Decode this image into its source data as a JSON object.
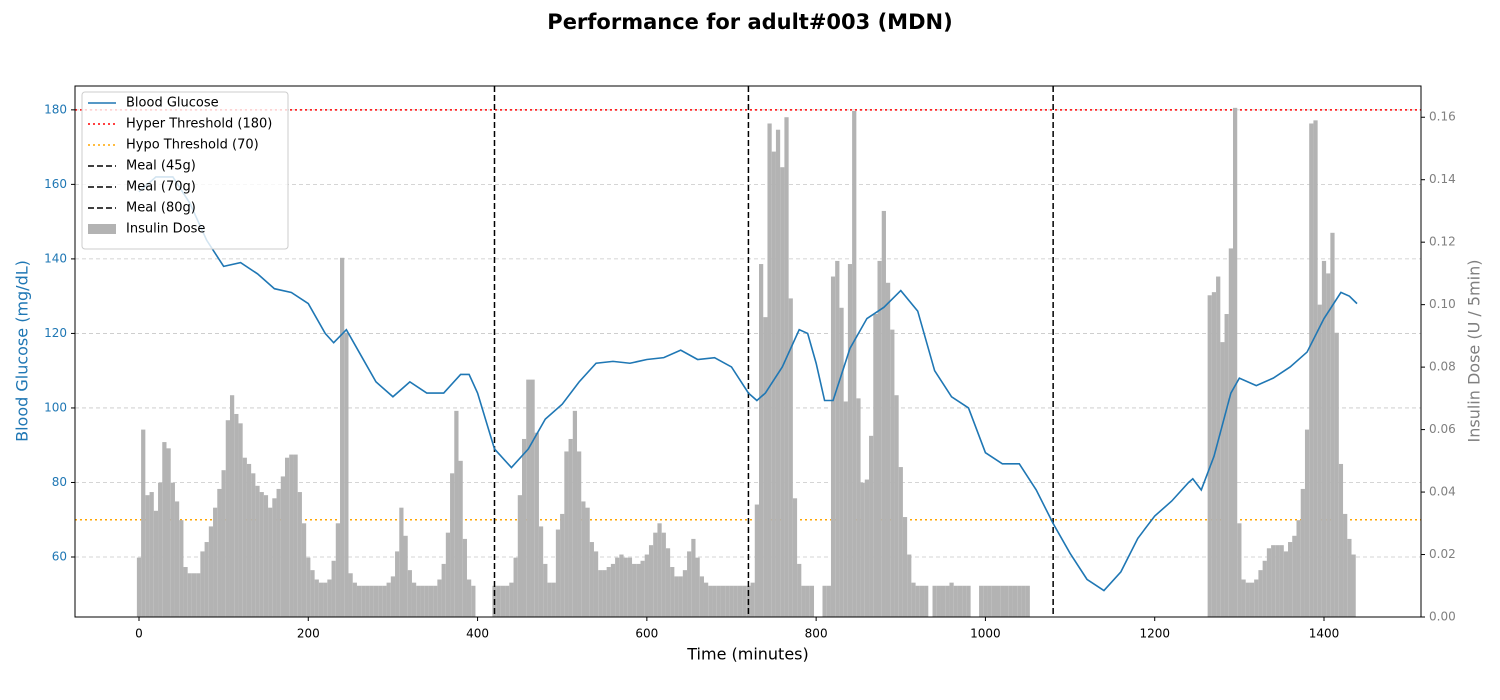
{
  "chart_data": {
    "type": "dual-axis-line-bar",
    "title": "Performance for adult#003 (MDN)",
    "xlabel": "Time (minutes)",
    "ylabel": "Blood Glucose (mg/dL)",
    "y2label": "Insulin Dose (U / 5min)",
    "xlim": [
      -75.6,
      1514.6
    ],
    "xticks": [
      0,
      200,
      400,
      600,
      800,
      1000,
      1200,
      1400
    ],
    "ylim": [
      43.9,
      186.4
    ],
    "yticks": [
      60,
      80,
      100,
      120,
      140,
      160,
      180
    ],
    "y2lim": [
      0,
      0.17
    ],
    "y2ticks": [
      {
        "value": 0,
        "label": "0.00"
      },
      {
        "value": 0.02,
        "label": "0.02"
      },
      {
        "value": 0.04,
        "label": "0.04"
      },
      {
        "value": 0.06,
        "label": "0.06"
      },
      {
        "value": 0.08,
        "label": "0.08"
      },
      {
        "value": 0.1,
        "label": "0.10"
      },
      {
        "value": 0.12,
        "label": "0.12"
      },
      {
        "value": 0.14,
        "label": "0.14"
      },
      {
        "value": 0.16,
        "label": "0.16"
      }
    ],
    "grid": true,
    "legend": "upper left",
    "series": [
      {
        "name": "Blood Glucose",
        "color": "#1f77b4",
        "kind": "line",
        "x": [
          0,
          20,
          40,
          60,
          80,
          100,
          120,
          140,
          160,
          180,
          200,
          220,
          230,
          245,
          260,
          280,
          300,
          320,
          340,
          360,
          380,
          390,
          400,
          420,
          440,
          460,
          480,
          500,
          520,
          540,
          560,
          580,
          600,
          620,
          640,
          660,
          680,
          700,
          720,
          730,
          740,
          760,
          780,
          790,
          800,
          810,
          820,
          840,
          860,
          880,
          900,
          920,
          940,
          960,
          980,
          1000,
          1020,
          1040,
          1060,
          1080,
          1100,
          1120,
          1140,
          1160,
          1180,
          1200,
          1220,
          1240,
          1245,
          1255,
          1270,
          1290,
          1300,
          1320,
          1340,
          1360,
          1380,
          1400,
          1420,
          1430,
          1439
        ],
        "values": [
          158,
          162,
          162,
          155,
          145,
          138,
          139,
          136,
          132,
          131,
          128,
          120,
          117.5,
          121,
          115,
          107,
          103,
          107,
          104,
          104,
          109,
          109,
          104,
          89,
          84,
          89,
          97,
          101,
          107,
          112,
          112.5,
          112,
          113,
          113.5,
          115.5,
          113,
          113.5,
          111,
          104,
          102,
          104,
          111,
          121,
          120,
          112,
          102,
          102,
          116,
          124,
          127,
          131.5,
          126,
          110,
          103,
          100,
          88,
          85,
          85,
          78,
          69,
          61,
          54,
          51,
          56,
          65,
          71,
          75,
          80,
          81,
          78,
          87,
          104,
          108,
          106,
          108,
          111,
          115,
          124,
          131,
          130,
          128
        ]
      },
      {
        "name": "Insulin Dose",
        "color": "#b3b3b3",
        "kind": "bar",
        "axis": "y2",
        "width": 5,
        "x": [
          0,
          5,
          10,
          15,
          20,
          25,
          30,
          35,
          40,
          45,
          50,
          55,
          60,
          65,
          70,
          75,
          80,
          85,
          90,
          95,
          100,
          105,
          110,
          115,
          120,
          125,
          130,
          135,
          140,
          145,
          150,
          155,
          160,
          165,
          170,
          175,
          180,
          185,
          190,
          195,
          200,
          205,
          210,
          215,
          220,
          225,
          230,
          235,
          240,
          245,
          250,
          255,
          260,
          265,
          270,
          275,
          280,
          285,
          290,
          295,
          300,
          305,
          310,
          315,
          320,
          325,
          330,
          335,
          340,
          345,
          350,
          355,
          360,
          365,
          370,
          375,
          380,
          385,
          390,
          395,
          400,
          405,
          410,
          415,
          420,
          425,
          430,
          435,
          440,
          445,
          450,
          455,
          460,
          465,
          470,
          475,
          480,
          485,
          490,
          495,
          500,
          505,
          510,
          515,
          520,
          525,
          530,
          535,
          540,
          545,
          550,
          555,
          560,
          565,
          570,
          575,
          580,
          585,
          590,
          595,
          600,
          605,
          610,
          615,
          620,
          625,
          630,
          635,
          640,
          645,
          650,
          655,
          660,
          665,
          670,
          675,
          680,
          685,
          690,
          695,
          700,
          705,
          710,
          715,
          720,
          725,
          730,
          735,
          740,
          745,
          750,
          755,
          760,
          765,
          770,
          775,
          780,
          785,
          790,
          795,
          800,
          805,
          810,
          815,
          820,
          825,
          830,
          835,
          840,
          845,
          850,
          855,
          860,
          865,
          870,
          875,
          880,
          885,
          890,
          895,
          900,
          905,
          910,
          915,
          920,
          925,
          930,
          935,
          940,
          945,
          950,
          955,
          960,
          965,
          970,
          975,
          980,
          985,
          990,
          995,
          1000,
          1005,
          1010,
          1015,
          1020,
          1025,
          1030,
          1035,
          1040,
          1045,
          1050,
          1055,
          1060,
          1065,
          1070,
          1075,
          1080,
          1085,
          1090,
          1095,
          1100,
          1105,
          1110,
          1115,
          1120,
          1125,
          1130,
          1135,
          1140,
          1145,
          1150,
          1155,
          1160,
          1165,
          1170,
          1175,
          1180,
          1185,
          1190,
          1195,
          1200,
          1205,
          1210,
          1215,
          1220,
          1225,
          1230,
          1235,
          1240,
          1245,
          1250,
          1255,
          1260,
          1265,
          1270,
          1275,
          1280,
          1285,
          1290,
          1295,
          1300,
          1305,
          1310,
          1315,
          1320,
          1325,
          1330,
          1335,
          1340,
          1345,
          1350,
          1355,
          1360,
          1365,
          1370,
          1375,
          1380,
          1385,
          1390,
          1395,
          1400,
          1405,
          1410,
          1415,
          1420,
          1425,
          1430,
          1435
        ],
        "values": [
          0.019,
          0.06,
          0.039,
          0.04,
          0.034,
          0.043,
          0.056,
          0.054,
          0.043,
          0.037,
          0.031,
          0.016,
          0.014,
          0.014,
          0.014,
          0.021,
          0.024,
          0.029,
          0.035,
          0.041,
          0.047,
          0.063,
          0.071,
          0.065,
          0.062,
          0.051,
          0.049,
          0.046,
          0.042,
          0.04,
          0.039,
          0.035,
          0.038,
          0.041,
          0.045,
          0.051,
          0.052,
          0.052,
          0.04,
          0.03,
          0.019,
          0.015,
          0.012,
          0.011,
          0.011,
          0.012,
          0.018,
          0.03,
          0.115,
          0.091,
          0.014,
          0.011,
          0.01,
          0.01,
          0.01,
          0.01,
          0.01,
          0.01,
          0.01,
          0.011,
          0.013,
          0.021,
          0.035,
          0.026,
          0.015,
          0.011,
          0.01,
          0.01,
          0.01,
          0.01,
          0.01,
          0.012,
          0.017,
          0.027,
          0.046,
          0.066,
          0.05,
          0.025,
          0.012,
          0.01,
          0,
          0,
          0,
          0,
          0.01,
          0.01,
          0.01,
          0.01,
          0.011,
          0.019,
          0.039,
          0.057,
          0.076,
          0.076,
          0.059,
          0.029,
          0.017,
          0.011,
          0.011,
          0.028,
          0.033,
          0.053,
          0.057,
          0.066,
          0.053,
          0.037,
          0.035,
          0.024,
          0.021,
          0.015,
          0.015,
          0.016,
          0.017,
          0.019,
          0.02,
          0.019,
          0.019,
          0.017,
          0.017,
          0.018,
          0.02,
          0.023,
          0.027,
          0.03,
          0.027,
          0.022,
          0.016,
          0.013,
          0.013,
          0.015,
          0.021,
          0.025,
          0.019,
          0.013,
          0.011,
          0.01,
          0.01,
          0.01,
          0.01,
          0.01,
          0.01,
          0.01,
          0.01,
          0.01,
          0.01,
          0.011,
          0.036,
          0.113,
          0.096,
          0.158,
          0.149,
          0.156,
          0.144,
          0.16,
          0.102,
          0.038,
          0.017,
          0.01,
          0.01,
          0.01,
          0,
          0,
          0.01,
          0.01,
          0.109,
          0.114,
          0.099,
          0.069,
          0.113,
          0.162,
          0.07,
          0.043,
          0.044,
          0.058,
          0.097,
          0.114,
          0.13,
          0.107,
          0.092,
          0.071,
          0.048,
          0.032,
          0.02,
          0.011,
          0.01,
          0.01,
          0.01,
          0,
          0.01,
          0.01,
          0.01,
          0.01,
          0.011,
          0.01,
          0.01,
          0.01,
          0.01,
          0,
          0,
          0.01,
          0.01,
          0.01,
          0.01,
          0.01,
          0.01,
          0.01,
          0.01,
          0.01,
          0.01,
          0.01,
          0.01,
          0,
          0,
          0,
          0,
          0,
          0,
          0,
          0,
          0,
          0,
          0,
          0,
          0,
          0,
          0,
          0,
          0,
          0,
          0,
          0,
          0,
          0,
          0,
          0,
          0,
          0,
          0,
          0,
          0,
          0,
          0,
          0,
          0,
          0,
          0,
          0,
          0,
          0,
          0,
          0,
          0,
          0,
          0.103,
          0.104,
          0.109,
          0.088,
          0.097,
          0.118,
          0.163,
          0.03,
          0.012,
          0.011,
          0.011,
          0.012,
          0.015,
          0.018,
          0.022,
          0.023,
          0.023,
          0.023,
          0.021,
          0.024,
          0.026,
          0.031,
          0.041,
          0.06,
          0.158,
          0.159,
          0.1,
          0.114,
          0.11,
          0.123,
          0.091,
          0.049,
          0.033,
          0.025,
          0.02
        ]
      }
    ],
    "hlines": [
      {
        "name": "Hyper Threshold (180)",
        "value": 180,
        "color": "#ff0000",
        "style": "dotted"
      },
      {
        "name": "Hypo Threshold (70)",
        "value": 70,
        "color": "#ffa500",
        "style": "dotted"
      }
    ],
    "vlines": [
      {
        "name": "Meal (45g)",
        "x": 420,
        "color": "#000000",
        "style": "dashed"
      },
      {
        "name": "Meal (70g)",
        "x": 720,
        "color": "#000000",
        "style": "dashed"
      },
      {
        "name": "Meal (80g)",
        "x": 1080,
        "color": "#000000",
        "style": "dashed"
      }
    ]
  }
}
